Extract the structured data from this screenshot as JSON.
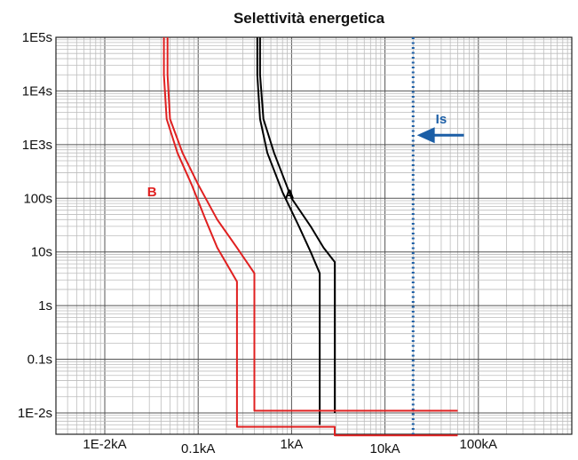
{
  "chart_data": {
    "type": "line",
    "title": "Selettività energetica",
    "x_scale": "log",
    "y_scale": "log",
    "xlim": [
      0.003,
      1000
    ],
    "ylim": [
      0.004,
      100000
    ],
    "grid": true,
    "x_ticks": [
      {
        "value": 0.01,
        "label": "1E-2kA"
      },
      {
        "value": 0.1,
        "label": "0.1kA"
      },
      {
        "value": 1,
        "label": "1kA"
      },
      {
        "value": 10,
        "label": "10kA"
      },
      {
        "value": 100,
        "label": "100kA"
      }
    ],
    "y_ticks": [
      {
        "value": 100000,
        "label": "1E5s"
      },
      {
        "value": 10000,
        "label": "1E4s"
      },
      {
        "value": 1000,
        "label": "1E3s"
      },
      {
        "value": 100,
        "label": "100s"
      },
      {
        "value": 10,
        "label": "10s"
      },
      {
        "value": 1,
        "label": "1s"
      },
      {
        "value": 0.1,
        "label": "0.1s"
      },
      {
        "value": 0.01,
        "label": "1E-2s"
      }
    ],
    "series": [
      {
        "name": "A",
        "color": "#000000",
        "curves": [
          [
            [
              0.43,
              100000
            ],
            [
              0.43,
              20000
            ],
            [
              0.46,
              3000
            ],
            [
              0.55,
              700
            ],
            [
              0.8,
              130
            ],
            [
              1.2,
              30
            ],
            [
              1.6,
              10
            ],
            [
              2.0,
              4
            ],
            [
              2.0,
              0.006
            ]
          ],
          [
            [
              0.46,
              100000
            ],
            [
              0.46,
              20000
            ],
            [
              0.5,
              3000
            ],
            [
              0.65,
              700
            ],
            [
              1.0,
              100
            ],
            [
              1.6,
              30
            ],
            [
              2.2,
              12
            ],
            [
              2.9,
              6.5
            ],
            [
              2.9,
              0.01
            ]
          ]
        ]
      },
      {
        "name": "B",
        "color": "#e02020",
        "curves": [
          [
            [
              0.043,
              100000
            ],
            [
              0.043,
              20000
            ],
            [
              0.046,
              3000
            ],
            [
              0.06,
              700
            ],
            [
              0.085,
              180
            ],
            [
              0.12,
              40
            ],
            [
              0.16,
              12
            ],
            [
              0.26,
              2.8
            ],
            [
              0.26,
              0.0055
            ],
            [
              2.9,
              0.0055
            ],
            [
              2.9,
              0.0038
            ],
            [
              60,
              0.0038
            ]
          ],
          [
            [
              0.047,
              100000
            ],
            [
              0.047,
              20000
            ],
            [
              0.05,
              3000
            ],
            [
              0.068,
              700
            ],
            [
              0.1,
              180
            ],
            [
              0.16,
              40
            ],
            [
              0.26,
              12
            ],
            [
              0.4,
              4
            ],
            [
              0.4,
              0.011
            ],
            [
              60,
              0.011
            ]
          ]
        ]
      }
    ],
    "annotations": [
      {
        "text": "A",
        "x": 0.95,
        "y": 100,
        "color": "#000000"
      },
      {
        "text": "B",
        "x": 0.032,
        "y": 110,
        "color": "#e02020"
      },
      {
        "text": "Is",
        "x": 40,
        "y": 2500,
        "color": "#1b5ea6"
      }
    ],
    "reference_line": {
      "x": 20,
      "color": "#1b5ea6",
      "style": "dotted",
      "arrow_from_x": 70,
      "arrow_to_x": 22,
      "arrow_y": 1500
    }
  }
}
